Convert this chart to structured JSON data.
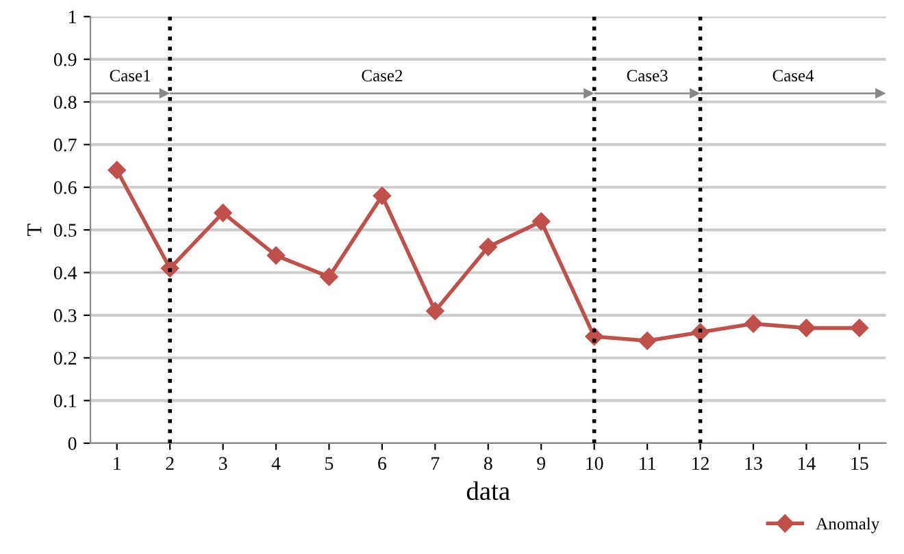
{
  "chart_data": {
    "type": "line",
    "xlabel": "data",
    "ylabel": "T",
    "x": [
      1,
      2,
      3,
      4,
      5,
      6,
      7,
      8,
      9,
      10,
      11,
      12,
      13,
      14,
      15
    ],
    "series": [
      {
        "name": "Anomaly",
        "color": "#c0504d",
        "values": [
          0.64,
          0.41,
          0.54,
          0.44,
          0.39,
          0.58,
          0.31,
          0.46,
          0.52,
          0.25,
          0.24,
          0.26,
          0.28,
          0.27,
          0.27
        ]
      }
    ],
    "xlim": [
      0.5,
      15.5
    ],
    "xticks": [
      1,
      2,
      3,
      4,
      5,
      6,
      7,
      8,
      9,
      10,
      11,
      12,
      13,
      14,
      15
    ],
    "ylim": [
      0,
      1
    ],
    "yticks": [
      0,
      0.1,
      0.2,
      0.3,
      0.4,
      0.5,
      0.6,
      0.7,
      0.8,
      0.9,
      1
    ],
    "ref_lines": [
      {
        "axis": "x",
        "value": 2,
        "color": "#000000",
        "line_style": "dotted"
      },
      {
        "axis": "x",
        "value": 10,
        "color": "#000000",
        "line_style": "dotted"
      },
      {
        "axis": "x",
        "value": 12,
        "color": "#000000",
        "line_style": "dotted"
      }
    ],
    "annotations": [
      "Case1",
      "Case2",
      "Case3",
      "Case4"
    ],
    "grid": "y",
    "legend": "bottom right",
    "marker": "diamond",
    "line_style": "solid"
  }
}
